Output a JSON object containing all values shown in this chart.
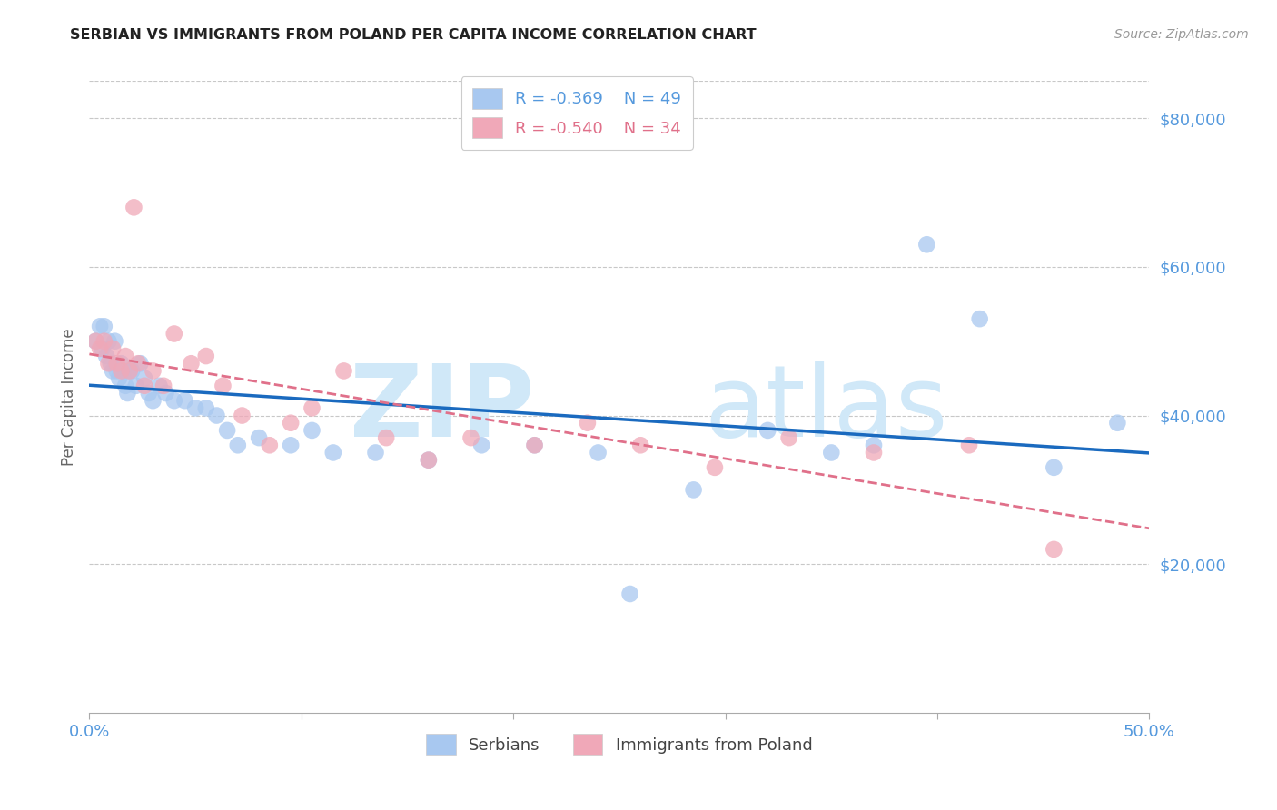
{
  "title": "SERBIAN VS IMMIGRANTS FROM POLAND PER CAPITA INCOME CORRELATION CHART",
  "source": "Source: ZipAtlas.com",
  "ylabel": "Per Capita Income",
  "xlim": [
    0.0,
    0.5
  ],
  "ylim": [
    0,
    85000
  ],
  "yticks": [
    20000,
    40000,
    60000,
    80000
  ],
  "ytick_labels": [
    "$20,000",
    "$40,000",
    "$60,000",
    "$80,000"
  ],
  "xticks": [
    0.0,
    0.1,
    0.2,
    0.3,
    0.4,
    0.5
  ],
  "xtick_labels": [
    "0.0%",
    "",
    "",
    "",
    "",
    "50.0%"
  ],
  "background_color": "#ffffff",
  "grid_color": "#c8c8c8",
  "series1_color": "#a8c8f0",
  "series2_color": "#f0a8b8",
  "line1_color": "#1a6abf",
  "line2_color": "#e0708a",
  "legend_r1": "R = -0.369",
  "legend_n1": "N = 49",
  "legend_r2": "R = -0.540",
  "legend_n2": "N = 34",
  "tick_label_color": "#5599dd",
  "ylabel_color": "#666666",
  "title_color": "#222222",
  "source_color": "#999999",
  "watermark_color": "#d0e8f8",
  "serbians_x": [
    0.003,
    0.005,
    0.006,
    0.007,
    0.008,
    0.009,
    0.01,
    0.011,
    0.012,
    0.013,
    0.014,
    0.015,
    0.016,
    0.017,
    0.018,
    0.019,
    0.02,
    0.022,
    0.024,
    0.026,
    0.028,
    0.03,
    0.033,
    0.036,
    0.04,
    0.045,
    0.05,
    0.055,
    0.06,
    0.065,
    0.07,
    0.08,
    0.095,
    0.105,
    0.115,
    0.135,
    0.16,
    0.185,
    0.21,
    0.24,
    0.255,
    0.285,
    0.32,
    0.35,
    0.37,
    0.395,
    0.42,
    0.455,
    0.485
  ],
  "serbians_y": [
    50000,
    52000,
    49000,
    52000,
    48000,
    50000,
    47000,
    46000,
    50000,
    46000,
    45000,
    47000,
    46000,
    44000,
    43000,
    46000,
    46000,
    44000,
    47000,
    45000,
    43000,
    42000,
    44000,
    43000,
    42000,
    42000,
    41000,
    41000,
    40000,
    38000,
    36000,
    37000,
    36000,
    38000,
    35000,
    35000,
    34000,
    36000,
    36000,
    35000,
    16000,
    30000,
    38000,
    35000,
    36000,
    63000,
    53000,
    33000,
    39000
  ],
  "poland_x": [
    0.003,
    0.005,
    0.007,
    0.009,
    0.011,
    0.013,
    0.015,
    0.017,
    0.019,
    0.021,
    0.023,
    0.026,
    0.03,
    0.035,
    0.04,
    0.048,
    0.055,
    0.063,
    0.072,
    0.085,
    0.095,
    0.105,
    0.12,
    0.14,
    0.16,
    0.18,
    0.21,
    0.235,
    0.26,
    0.295,
    0.33,
    0.37,
    0.415,
    0.455
  ],
  "poland_y": [
    50000,
    49000,
    50000,
    47000,
    49000,
    47000,
    46000,
    48000,
    46000,
    68000,
    47000,
    44000,
    46000,
    44000,
    51000,
    47000,
    48000,
    44000,
    40000,
    36000,
    39000,
    41000,
    46000,
    37000,
    34000,
    37000,
    36000,
    39000,
    36000,
    33000,
    37000,
    35000,
    36000,
    22000
  ]
}
